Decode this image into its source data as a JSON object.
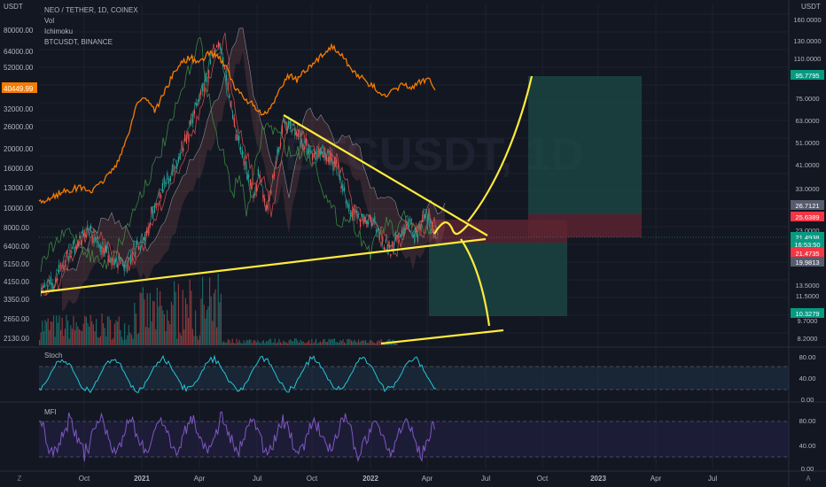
{
  "legend": {
    "symbol": "NEO / TETHER, 1D, COINEX",
    "vol": "Vol",
    "ichimoku": "Ichimoku",
    "overlay": "BTCUSDT, BINANCE"
  },
  "watermark": "BTCUSDT, 1D",
  "currency_left": "USDT",
  "currency_right": "USDT",
  "colors": {
    "background": "#131722",
    "grid": "#1e222d",
    "up": "#26a69a",
    "down": "#ef5350",
    "btc_line": "#f57c00",
    "trend_line": "#ffeb3b",
    "long_zone": "#1c4b47",
    "short_zone": "#5a2330",
    "stoch": "#26c6da",
    "mfi": "#7e57c2"
  },
  "chart_data": [
    {
      "type": "candlestick",
      "name": "NEO / TETHER, 1D, COINEX",
      "x": [
        "Oct",
        "2021",
        "Apr",
        "Jul",
        "Oct",
        "2022",
        "Apr",
        "Jul",
        "Oct",
        "2023",
        "Apr",
        "Jul"
      ],
      "y_ticks_right": [
        "160.0000",
        "130.0000",
        "110.0000",
        "95.7795",
        "75.0000",
        "63.0000",
        "51.0000",
        "41.0000",
        "33.0000",
        "26.7121",
        "25.6389",
        "23.0000",
        "21.4938",
        "16:53:50",
        "21.4735",
        "19.9813",
        "13.5000",
        "11.5000",
        "10.3279",
        "9.7000",
        "8.2000"
      ],
      "y_scale": "log",
      "overlay_series": {
        "name": "BTCUSDT, BINANCE",
        "y_ticks_left": [
          "80000.00",
          "64000.00",
          "52000.00",
          "40449.99",
          "32000.00",
          "26000.00",
          "20000.00",
          "16000.00",
          "13000.00",
          "10000.00",
          "8000.00",
          "6400.00",
          "5150.00",
          "4150.00",
          "3350.00",
          "2650.00",
          "2130.00"
        ],
        "current_value": "40449.99"
      },
      "price_labels": [
        {
          "value": "95.7795",
          "color": "#089981"
        },
        {
          "value": "26.7121",
          "color": "#555c6e"
        },
        {
          "value": "25.6389",
          "color": "#f23645"
        },
        {
          "value": "21.4938",
          "color": "#089981"
        },
        {
          "value": "16:53:50",
          "color": "#089981"
        },
        {
          "value": "21.4735",
          "color": "#f23645"
        },
        {
          "value": "19.9813",
          "color": "#555c6e"
        },
        {
          "value": "10.3279",
          "color": "#089981"
        }
      ]
    },
    {
      "type": "line",
      "name": "Stoch",
      "y_ticks": [
        "80.00",
        "40.00",
        "0.00"
      ],
      "ylim": [
        0,
        100
      ]
    },
    {
      "type": "line",
      "name": "MFI",
      "y_ticks": [
        "80.00",
        "40.00",
        "0.00"
      ],
      "ylim": [
        0,
        100
      ]
    }
  ]
}
